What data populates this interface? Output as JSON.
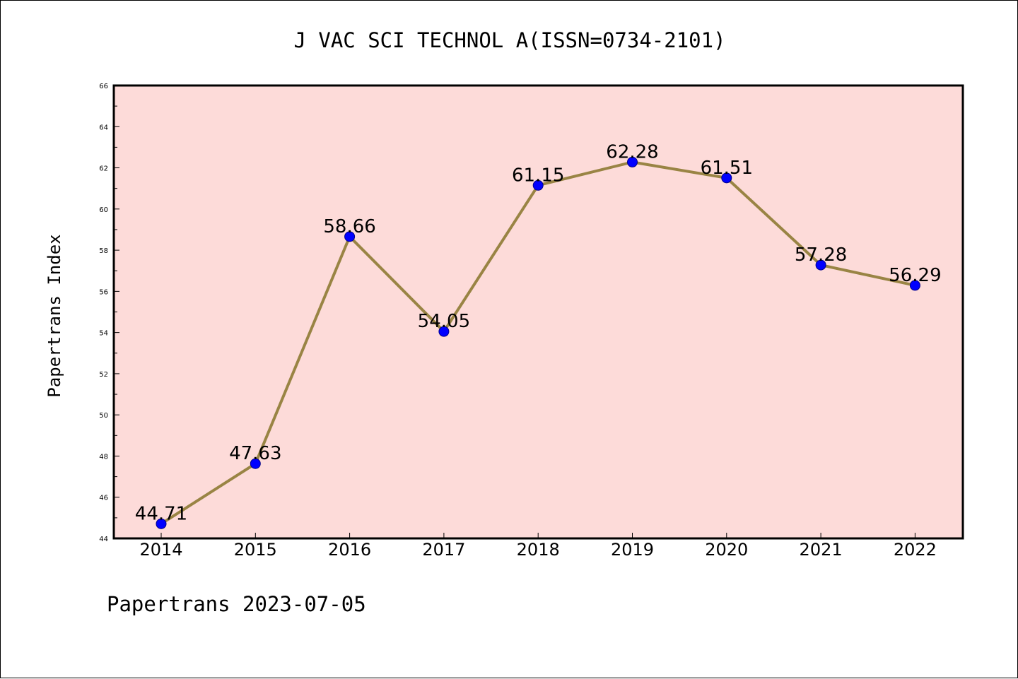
{
  "chart_data": {
    "type": "line",
    "title": "J VAC SCI TECHNOL A(ISSN=0734-2101)",
    "ylabel": "Papertrans Index",
    "xlabel": "",
    "footer": "Papertrans 2023-07-05",
    "categories": [
      "2014",
      "2015",
      "2016",
      "2017",
      "2018",
      "2019",
      "2020",
      "2021",
      "2022"
    ],
    "values": [
      44.71,
      47.63,
      58.66,
      54.05,
      61.15,
      62.28,
      61.51,
      57.28,
      56.29
    ],
    "data_labels": [
      "44.71",
      "47.63",
      "58.66",
      "54.05",
      "61.15",
      "62.28",
      "61.51",
      "57.28",
      "56.29"
    ],
    "ylim": [
      44,
      66
    ],
    "yticks": [
      "44",
      "46",
      "48",
      "50",
      "52",
      "54",
      "56",
      "58",
      "60",
      "62",
      "64",
      "66"
    ],
    "grid": false,
    "colors": {
      "plot_background": "#fddbd9",
      "line": "#998444",
      "marker": "#0000ff",
      "axis": "#000000"
    }
  }
}
